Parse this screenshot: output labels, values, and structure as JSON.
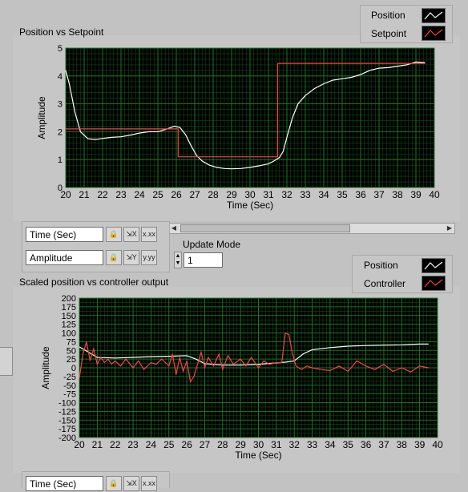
{
  "graph1": {
    "title": "Position vs Setpoint",
    "legend": [
      {
        "label": "Position",
        "color": "#ffffff"
      },
      {
        "label": "Setpoint",
        "color": "#ff4040"
      }
    ],
    "xlabel": "Time (Sec)",
    "ylabel": "Amplitude"
  },
  "graph2": {
    "title": "Scaled position vs controller output",
    "legend": [
      {
        "label": "Position",
        "color": "#ffffff"
      },
      {
        "label": "Controller",
        "color": "#ff4040"
      }
    ],
    "xlabel": "Time (Sec)",
    "ylabel": "Amplitude"
  },
  "scale_legend1": {
    "x_name": "Time (Sec)",
    "y_name": "Amplitude"
  },
  "scale_legend2": {
    "x_name": "Time (Sec)"
  },
  "update_mode": {
    "label": "Update Mode",
    "value": "1"
  },
  "scale_buttons": {
    "lock_icon": "lock-icon",
    "autoscale_x": "autoscale-x-icon",
    "format_x": "x.xx",
    "autoscale_y": "autoscale-y-icon",
    "format_y": "y.yy"
  },
  "chart_data": [
    {
      "type": "line",
      "title": "Position vs Setpoint",
      "xlabel": "Time (Sec)",
      "ylabel": "Amplitude",
      "xlim": [
        20,
        40
      ],
      "ylim": [
        0,
        5
      ],
      "x_ticks": [
        20,
        21,
        22,
        23,
        24,
        25,
        26,
        27,
        28,
        29,
        30,
        31,
        32,
        33,
        34,
        35,
        36,
        37,
        38,
        39,
        40
      ],
      "y_ticks": [
        0,
        1,
        2,
        3,
        4,
        5
      ],
      "grid": true,
      "legend_position": "top-right",
      "series": [
        {
          "name": "Position",
          "color": "#ffffff",
          "x": [
            20,
            20.2,
            20.5,
            20.8,
            21.2,
            21.6,
            22,
            22.5,
            23,
            23.5,
            24,
            24.5,
            25,
            25.5,
            25.9,
            26.2,
            26.5,
            26.8,
            27.1,
            27.4,
            27.8,
            28.2,
            28.6,
            29,
            29.5,
            30,
            30.5,
            31,
            31.3,
            31.6,
            31.8,
            32,
            32.3,
            32.6,
            33,
            33.5,
            34,
            34.5,
            35,
            35.5,
            36,
            36.5,
            37,
            37.5,
            38,
            38.5,
            39,
            39.5
          ],
          "y": [
            4.2,
            3.7,
            2.7,
            2.0,
            1.75,
            1.72,
            1.76,
            1.8,
            1.82,
            1.88,
            1.95,
            2.0,
            2.0,
            2.1,
            2.2,
            2.15,
            1.9,
            1.5,
            1.15,
            0.95,
            0.8,
            0.72,
            0.68,
            0.67,
            0.68,
            0.72,
            0.78,
            0.85,
            0.95,
            1.08,
            1.3,
            1.8,
            2.5,
            3.0,
            3.3,
            3.55,
            3.72,
            3.85,
            3.9,
            3.95,
            4.05,
            4.2,
            4.28,
            4.3,
            4.35,
            4.4,
            4.5,
            4.48
          ]
        },
        {
          "name": "Setpoint",
          "color": "#ff4040",
          "x": [
            20,
            26.1,
            26.1,
            31.5,
            31.5,
            39.5
          ],
          "y": [
            2.1,
            2.1,
            1.1,
            1.1,
            4.45,
            4.45
          ]
        }
      ]
    },
    {
      "type": "line",
      "title": "Scaled position vs controller output",
      "xlabel": "Time (Sec)",
      "ylabel": "Amplitude",
      "xlim": [
        20,
        40
      ],
      "ylim": [
        -200,
        200
      ],
      "x_ticks": [
        20,
        21,
        22,
        23,
        24,
        25,
        26,
        27,
        28,
        29,
        30,
        31,
        32,
        33,
        34,
        35,
        36,
        37,
        38,
        39,
        40
      ],
      "y_ticks": [
        -200,
        -175,
        -150,
        -125,
        -100,
        -75,
        -50,
        -25,
        0,
        25,
        50,
        75,
        100,
        125,
        150,
        175,
        200
      ],
      "grid": true,
      "legend_position": "top-right",
      "series": [
        {
          "name": "Position",
          "color": "#ffffff",
          "x": [
            20,
            20.5,
            21,
            22,
            23,
            24,
            25,
            26,
            26.5,
            27,
            28,
            29,
            30,
            31,
            31.5,
            32,
            32.5,
            33,
            34,
            35,
            36,
            37,
            38,
            39,
            39.5
          ],
          "y": [
            60,
            45,
            30,
            28,
            30,
            32,
            33,
            35,
            25,
            12,
            8,
            8,
            10,
            14,
            16,
            20,
            40,
            52,
            58,
            62,
            64,
            65,
            66,
            68,
            68
          ]
        },
        {
          "name": "Controller",
          "color": "#ff4040",
          "x": [
            20,
            20.2,
            20.4,
            20.6,
            20.8,
            21,
            21.2,
            21.4,
            21.6,
            21.8,
            22,
            22.3,
            22.6,
            23,
            23.3,
            23.6,
            24,
            24.3,
            24.6,
            25,
            25.2,
            25.4,
            25.6,
            25.8,
            26,
            26.2,
            26.4,
            26.6,
            26.8,
            27,
            27.2,
            27.5,
            27.8,
            28,
            28.3,
            28.6,
            29,
            29.3,
            29.6,
            30,
            30.3,
            30.6,
            31,
            31.3,
            31.5,
            31.7,
            31.9,
            32.1,
            32.4,
            32.7,
            33,
            33.5,
            34,
            34.5,
            35,
            35.5,
            36,
            36.5,
            37,
            37.5,
            38,
            38.5,
            39,
            39.5
          ],
          "y": [
            -30,
            40,
            75,
            20,
            55,
            10,
            30,
            15,
            25,
            10,
            20,
            5,
            25,
            0,
            20,
            -5,
            15,
            10,
            25,
            5,
            40,
            -20,
            30,
            -10,
            20,
            -40,
            -25,
            10,
            45,
            0,
            30,
            5,
            40,
            -5,
            35,
            10,
            25,
            5,
            30,
            0,
            20,
            10,
            15,
            15,
            100,
            95,
            40,
            5,
            -5,
            5,
            0,
            -5,
            -8,
            5,
            -10,
            20,
            5,
            -5,
            10,
            -10,
            0,
            -12,
            5,
            0
          ]
        }
      ]
    }
  ]
}
